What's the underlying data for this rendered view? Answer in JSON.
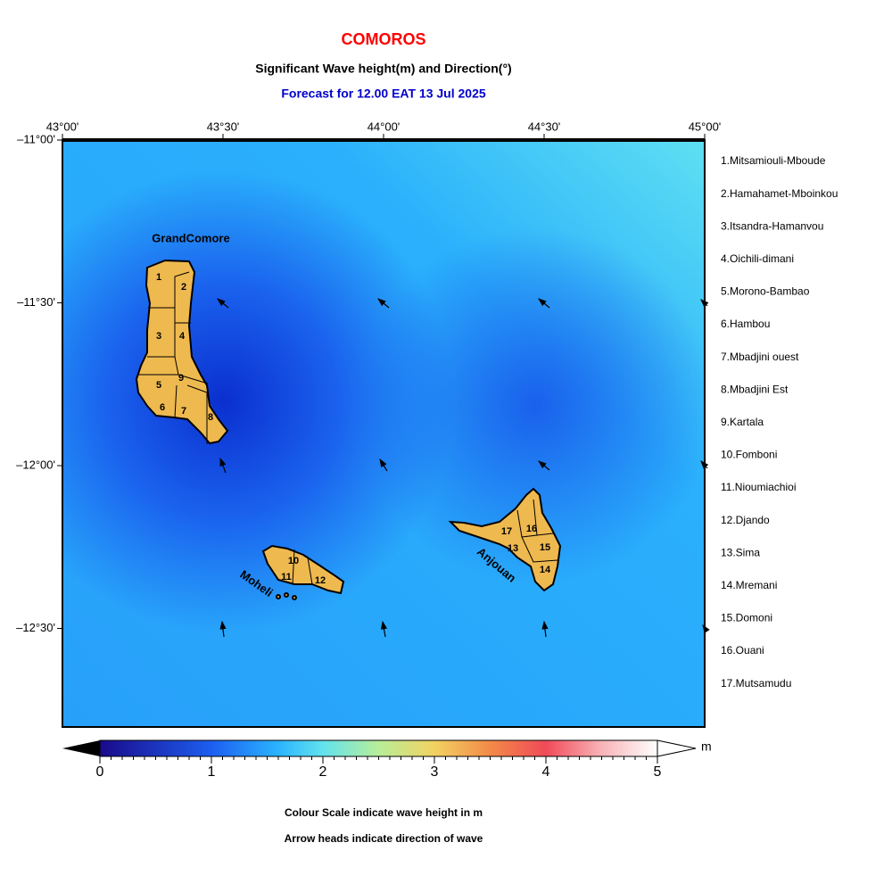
{
  "header": {
    "title": "COMOROS",
    "subtitle": "Significant Wave height(m) and Direction(°)",
    "forecast": "Forecast for  12.00 EAT 13 Jul 2025"
  },
  "map": {
    "lon_labels": [
      "43°00'",
      "43°30'",
      "44°00'",
      "44°30'",
      "45°00'"
    ],
    "lat_labels": [
      "–11°00'",
      "–11°30'",
      "–12°00'",
      "–12°30'"
    ],
    "islands": [
      "GrandComore",
      "Moheli",
      "Anjouan"
    ],
    "region_numbers": [
      "1",
      "2",
      "3",
      "4",
      "5",
      "6",
      "7",
      "8",
      "9",
      "10",
      "11",
      "12",
      "13",
      "14",
      "15",
      "16",
      "17"
    ]
  },
  "legend": {
    "regions": [
      "1.Mitsamiouli-Mboude",
      "2.Hamahamet-Mboinkou",
      "3.Itsandra-Hamanvou",
      "4.Oichili-dimani",
      "5.Morono-Bambao",
      "6.Hambou",
      "7.Mbadjini ouest",
      "8.Mbadjini Est",
      "9.Kartala",
      "10.Fomboni",
      "11.Nioumiachioi",
      "12.Djando",
      "13.Sima",
      "14.Mremani",
      "15.Domoni",
      "16.Ouani",
      "17.Mutsamudu"
    ]
  },
  "colorbar": {
    "ticks": [
      0,
      1,
      2,
      3,
      4,
      5
    ],
    "unit": "m"
  },
  "footer": {
    "notes": [
      "Colour Scale indicate wave height in m",
      "Arrow heads indicate direction of wave"
    ]
  }
}
